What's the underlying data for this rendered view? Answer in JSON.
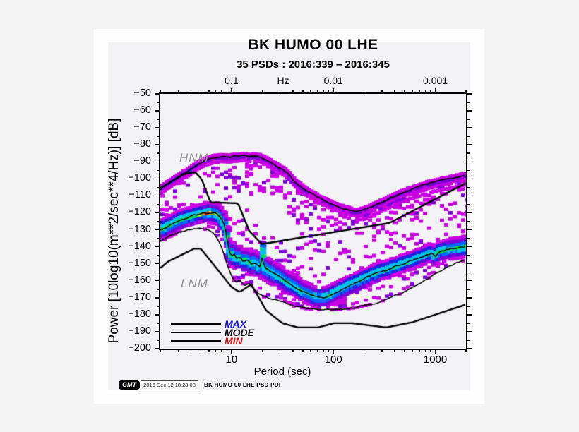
{
  "footer": {
    "logo": "GMT",
    "timestamp": "2016 Dec 12 18:28:08",
    "label": "BK HUMO 00 LHE PSD PDF"
  },
  "chart_data": {
    "type": "heatmap",
    "title": "BK HUMO 00 LHE",
    "subtitle": "35 PSDs : 2016:339 – 2016:345",
    "xlabel": "Period (sec)",
    "ylabel": "Power [10log10(m**2/sec**4/Hz)] [dB]",
    "top_axis_unit": "Hz",
    "xlim": [
      2,
      2000
    ],
    "ylim": [
      -200,
      -50
    ],
    "x_major_ticks": [
      10,
      100,
      1000
    ],
    "x_tick_labels": [
      "10",
      "100",
      "1000"
    ],
    "top_tick_labels": [
      "0.1",
      "0.01",
      "0.001"
    ],
    "y_tick_labels": [
      "−50",
      "−60",
      "−70",
      "−80",
      "−90",
      "−100",
      "−110",
      "−120",
      "−130",
      "−140",
      "−150",
      "−160",
      "−170",
      "−180",
      "−190",
      "−200"
    ],
    "grid": false,
    "legend": {
      "position": "bottom-left-inside",
      "items": [
        {
          "label": "MAX",
          "color": "#1414cc"
        },
        {
          "label": "MODE",
          "color": "#101010"
        },
        {
          "label": "MIN",
          "color": "#cc1414"
        }
      ]
    },
    "annotations": [
      {
        "text": "HNM",
        "x": 254,
        "y": 214,
        "color": "#8f8f8f"
      },
      {
        "text": "LNM",
        "x": 256,
        "y": 392,
        "color": "#8f8f8f"
      }
    ],
    "colormap": {
      "magenta": "#c800e2",
      "purple": "#7c00d8",
      "blue": "#2222e0",
      "lightblue": "#0066ff",
      "cyan": "#00c2e8",
      "green": "#00e055",
      "yellow": "#ffe400",
      "orange": "#ff9000",
      "red": "#f02800"
    },
    "series": {
      "HNM": [
        [
          2,
          -105.5
        ],
        [
          3.4,
          -97.2
        ],
        [
          4.4,
          -96
        ],
        [
          5.1,
          -100.2
        ],
        [
          6.2,
          -113.8
        ],
        [
          11.6,
          -114.4
        ],
        [
          14.9,
          -130.6
        ],
        [
          19.8,
          -138.4
        ],
        [
          354.8,
          -126
        ],
        [
          2000,
          -102.5
        ]
      ],
      "LNM": [
        [
          2,
          -152.5
        ],
        [
          2.4,
          -148.6
        ],
        [
          4.3,
          -141.1
        ],
        [
          5,
          -141.1
        ],
        [
          10,
          -163.7
        ],
        [
          12,
          -166.7
        ],
        [
          15.6,
          -162.1
        ],
        [
          21.9,
          -177.5
        ],
        [
          31.6,
          -185
        ],
        [
          45,
          -187.5
        ],
        [
          70,
          -187.5
        ],
        [
          101,
          -185
        ],
        [
          154,
          -185
        ],
        [
          328,
          -187.5
        ],
        [
          600,
          -184.4
        ],
        [
          2000,
          -174
        ]
      ],
      "MAX": [
        [
          2,
          -106
        ],
        [
          2.5,
          -102
        ],
        [
          3,
          -99
        ],
        [
          3.6,
          -96
        ],
        [
          4.2,
          -93.5
        ],
        [
          5,
          -90.5
        ],
        [
          5.8,
          -88.6
        ],
        [
          6.6,
          -87.6
        ],
        [
          7.5,
          -87.1
        ],
        [
          8.5,
          -86.8
        ],
        [
          9.5,
          -87.3
        ],
        [
          10.5,
          -86.6
        ],
        [
          12,
          -86.9
        ],
        [
          13.5,
          -86.4
        ],
        [
          15,
          -86.9
        ],
        [
          17,
          -86.5
        ],
        [
          19,
          -87.1
        ],
        [
          21,
          -88.2
        ],
        [
          23,
          -89.6
        ],
        [
          26,
          -91.6
        ],
        [
          31,
          -94.2
        ],
        [
          36,
          -97.2
        ],
        [
          41,
          -101.6
        ],
        [
          48,
          -104.6
        ],
        [
          59,
          -108.2
        ],
        [
          72,
          -111.2
        ],
        [
          91,
          -114.2
        ],
        [
          115,
          -116.6
        ],
        [
          140,
          -118.2
        ],
        [
          166,
          -119.5
        ],
        [
          200,
          -118.1
        ],
        [
          245,
          -116.1
        ],
        [
          310,
          -113.2
        ],
        [
          400,
          -110.2
        ],
        [
          500,
          -107.7
        ],
        [
          640,
          -105.4
        ],
        [
          800,
          -103.4
        ],
        [
          1000,
          -101.8
        ],
        [
          1300,
          -100.3
        ],
        [
          1600,
          -99.1
        ],
        [
          2000,
          -98
        ]
      ],
      "MODE": [
        [
          2,
          -130.5
        ],
        [
          2.4,
          -128
        ],
        [
          2.9,
          -125.5
        ],
        [
          3.4,
          -123.5
        ],
        [
          4,
          -122.2
        ],
        [
          4.6,
          -121.3
        ],
        [
          5.2,
          -120.6
        ],
        [
          5.8,
          -120.1
        ],
        [
          6.3,
          -119.9
        ],
        [
          6.9,
          -120.4
        ],
        [
          7.5,
          -121.8
        ],
        [
          8.1,
          -124.5
        ],
        [
          8.6,
          -128
        ],
        [
          9,
          -134
        ],
        [
          9.4,
          -141
        ],
        [
          9.9,
          -146
        ],
        [
          10.5,
          -143.8
        ],
        [
          11.2,
          -147.2
        ],
        [
          12,
          -145.8
        ],
        [
          13,
          -148.8
        ],
        [
          14.2,
          -147.4
        ],
        [
          15.5,
          -150.2
        ],
        [
          17,
          -149.2
        ],
        [
          18.5,
          -151.6
        ],
        [
          19.6,
          -151
        ],
        [
          20.3,
          -140.8
        ],
        [
          21,
          -152.4
        ],
        [
          22.5,
          -153.4
        ],
        [
          25,
          -155
        ],
        [
          28,
          -156.8
        ],
        [
          32,
          -159
        ],
        [
          37,
          -161.4
        ],
        [
          43,
          -163.8
        ],
        [
          50,
          -166
        ],
        [
          58,
          -168
        ],
        [
          68,
          -169.6
        ],
        [
          80,
          -170.2
        ],
        [
          92,
          -168.6
        ],
        [
          105,
          -166.8
        ],
        [
          122,
          -165
        ],
        [
          142,
          -163
        ],
        [
          165,
          -161.2
        ],
        [
          195,
          -159.2
        ],
        [
          235,
          -157
        ],
        [
          285,
          -154.8
        ],
        [
          345,
          -153.2
        ],
        [
          420,
          -151.2
        ],
        [
          505,
          -149.4
        ],
        [
          600,
          -147.8
        ],
        [
          710,
          -146.2
        ],
        [
          830,
          -144.8
        ],
        [
          940,
          -143.6
        ],
        [
          1000,
          -146
        ],
        [
          1080,
          -142.8
        ],
        [
          1250,
          -142
        ],
        [
          1450,
          -141.2
        ],
        [
          1700,
          -140.8
        ],
        [
          2000,
          -140.2
        ]
      ],
      "MIN": [
        [
          2,
          -136.5
        ],
        [
          2.6,
          -133
        ],
        [
          3.3,
          -130.8
        ],
        [
          4,
          -129.6
        ],
        [
          4.7,
          -129
        ],
        [
          5.4,
          -129.4
        ],
        [
          6.1,
          -130.6
        ],
        [
          6.8,
          -132.6
        ],
        [
          7.5,
          -136
        ],
        [
          8.2,
          -142
        ],
        [
          9,
          -150
        ],
        [
          10,
          -157
        ],
        [
          11,
          -161
        ],
        [
          12,
          -159.5
        ],
        [
          13.5,
          -163
        ],
        [
          15,
          -161.8
        ],
        [
          17,
          -166
        ],
        [
          20,
          -169
        ],
        [
          24,
          -170.6
        ],
        [
          27,
          -171.2
        ],
        [
          33,
          -173
        ],
        [
          42,
          -175
        ],
        [
          55,
          -176.4
        ],
        [
          75,
          -177
        ],
        [
          100,
          -177
        ],
        [
          130,
          -176.6
        ],
        [
          165,
          -175.8
        ],
        [
          210,
          -174.4
        ],
        [
          270,
          -172.8
        ],
        [
          350,
          -170.4
        ],
        [
          450,
          -167.6
        ],
        [
          570,
          -164.6
        ],
        [
          700,
          -161.6
        ],
        [
          850,
          -158.6
        ],
        [
          1050,
          -155.2
        ],
        [
          1300,
          -152
        ],
        [
          1600,
          -149.6
        ],
        [
          2000,
          -147.6
        ]
      ]
    },
    "pdf": {
      "halfwidth_db": [
        [
          2,
          6
        ],
        [
          5,
          5.5
        ],
        [
          8,
          6.5
        ],
        [
          12,
          6.5
        ],
        [
          20,
          7
        ],
        [
          60,
          6
        ],
        [
          200,
          5.5
        ],
        [
          700,
          5
        ],
        [
          2000,
          6.5
        ]
      ],
      "hot_core": [
        4.7,
        7.6
      ],
      "seed": 1234
    }
  }
}
